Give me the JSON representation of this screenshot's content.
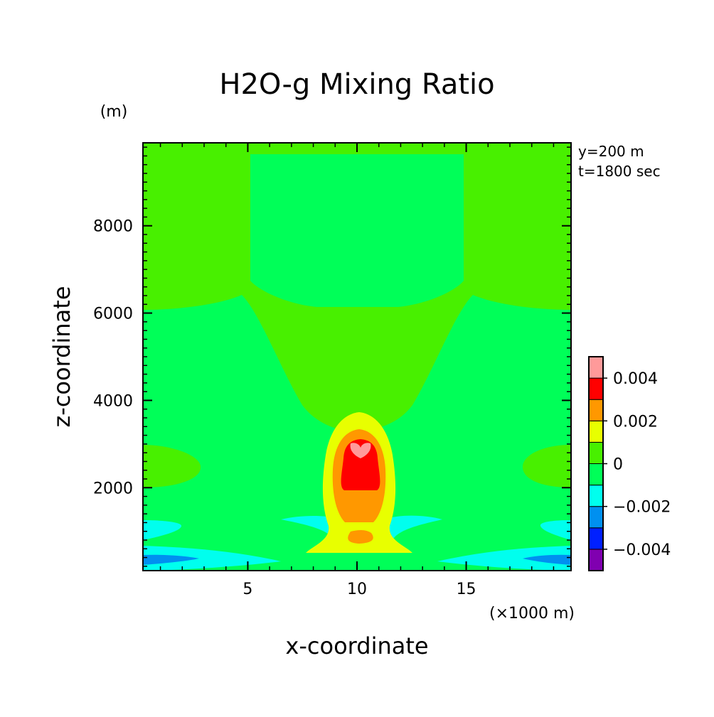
{
  "chart_data": {
    "type": "heatmap",
    "title": "H2O-g Mixing Ratio",
    "xlabel": "x-coordinate",
    "ylabel": "z-coordinate",
    "x_unit": "(×1000 m)",
    "y_unit": "(m)",
    "annotations": [
      "y=200 m",
      "t=1800 sec"
    ],
    "xlim": [
      0.2,
      19.8
    ],
    "ylim": [
      100,
      9900
    ],
    "x_ticks": [
      5,
      10,
      15
    ],
    "x_tick_labels": [
      "5",
      "10",
      "15"
    ],
    "y_ticks": [
      2000,
      4000,
      6000,
      8000
    ],
    "y_tick_labels": [
      "2000",
      "4000",
      "6000",
      "8000"
    ],
    "grid": false,
    "colorbar": {
      "position": "right",
      "levels": [
        -0.005,
        -0.004,
        -0.003,
        -0.002,
        -0.001,
        0,
        0.001,
        0.002,
        0.003,
        0.004,
        0.005
      ],
      "colors": [
        "#8000b0",
        "#0020ff",
        "#0090f0",
        "#00ffee",
        "#00ff58",
        "#48f000",
        "#e8ff00",
        "#ff9800",
        "#ff0000",
        "#ff9a9a"
      ],
      "tick_values": [
        0.004,
        0.002,
        0,
        -0.002,
        -0.004
      ],
      "tick_labels": [
        "0.004",
        "0.002",
        "0",
        "−0.002",
        "−0.004"
      ]
    },
    "regions": [
      {
        "name": "upper-side-lobes",
        "level": "0 to 0.001",
        "color": "#48f000"
      },
      {
        "name": "upper-center",
        "level": "-0.001 to 0",
        "color": "#00ff58"
      },
      {
        "name": "plume-core",
        "level": "0.003 to 0.005",
        "color": "#ff0000"
      },
      {
        "name": "low-level-dry-streaks",
        "level": "-0.003 to -0.001",
        "color": "#00ffee"
      }
    ]
  }
}
